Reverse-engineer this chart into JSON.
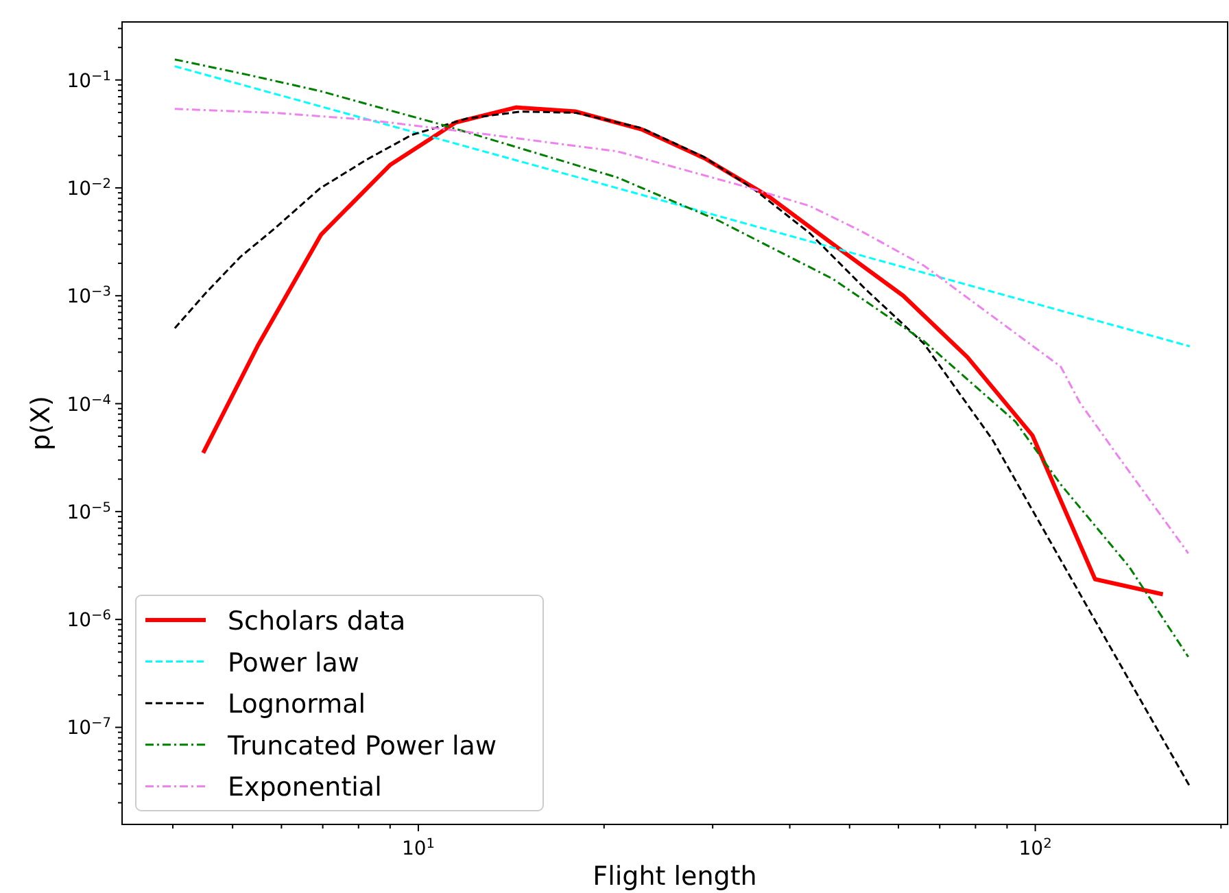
{
  "chart_data": {
    "type": "line",
    "xlabel": "Flight length",
    "ylabel": "p(X)",
    "log": "xy",
    "legend": "bottom left",
    "grid": false,
    "xlim": [
      3.31,
      205
    ],
    "ylim": [
      1.26e-08,
      0.345
    ],
    "xticks": [
      {
        "value": 4,
        "label": null
      },
      {
        "value": 5,
        "label": null
      },
      {
        "value": 6,
        "label": null
      },
      {
        "value": 7,
        "label": null
      },
      {
        "value": 8,
        "label": null
      },
      {
        "value": 9,
        "label": null
      },
      {
        "value": 10,
        "label": "10$^{1}$"
      },
      {
        "value": 20,
        "label": null
      },
      {
        "value": 30,
        "label": null
      },
      {
        "value": 40,
        "label": null
      },
      {
        "value": 50,
        "label": null
      },
      {
        "value": 60,
        "label": null
      },
      {
        "value": 70,
        "label": null
      },
      {
        "value": 80,
        "label": null
      },
      {
        "value": 90,
        "label": null
      },
      {
        "value": 100,
        "label": "10$^{2}$"
      },
      {
        "value": 200,
        "label": null
      }
    ],
    "yticks": [
      {
        "value": 2e-08,
        "label": null
      },
      {
        "value": 3e-08,
        "label": null
      },
      {
        "value": 4e-08,
        "label": null
      },
      {
        "value": 5e-08,
        "label": null
      },
      {
        "value": 6e-08,
        "label": null
      },
      {
        "value": 7e-08,
        "label": null
      },
      {
        "value": 8e-08,
        "label": null
      },
      {
        "value": 9e-08,
        "label": null
      },
      {
        "value": 1e-07,
        "label": "10$^{−7}$"
      },
      {
        "value": 2e-07,
        "label": null
      },
      {
        "value": 3e-07,
        "label": null
      },
      {
        "value": 4e-07,
        "label": null
      },
      {
        "value": 5e-07,
        "label": null
      },
      {
        "value": 6e-07,
        "label": null
      },
      {
        "value": 7e-07,
        "label": null
      },
      {
        "value": 8e-07,
        "label": null
      },
      {
        "value": 9e-07,
        "label": null
      },
      {
        "value": 1e-06,
        "label": "10$^{−6}$"
      },
      {
        "value": 2e-06,
        "label": null
      },
      {
        "value": 3e-06,
        "label": null
      },
      {
        "value": 4e-06,
        "label": null
      },
      {
        "value": 5e-06,
        "label": null
      },
      {
        "value": 6e-06,
        "label": null
      },
      {
        "value": 7e-06,
        "label": null
      },
      {
        "value": 8e-06,
        "label": null
      },
      {
        "value": 9e-06,
        "label": null
      },
      {
        "value": 1e-05,
        "label": "10$^{−5}$"
      },
      {
        "value": 2e-05,
        "label": null
      },
      {
        "value": 3e-05,
        "label": null
      },
      {
        "value": 4e-05,
        "label": null
      },
      {
        "value": 5e-05,
        "label": null
      },
      {
        "value": 6e-05,
        "label": null
      },
      {
        "value": 7e-05,
        "label": null
      },
      {
        "value": 8e-05,
        "label": null
      },
      {
        "value": 9e-05,
        "label": null
      },
      {
        "value": 0.0001,
        "label": "10$^{−4}$"
      },
      {
        "value": 0.0002,
        "label": null
      },
      {
        "value": 0.0003,
        "label": null
      },
      {
        "value": 0.0004,
        "label": null
      },
      {
        "value": 0.0005,
        "label": null
      },
      {
        "value": 0.0006,
        "label": null
      },
      {
        "value": 0.0007,
        "label": null
      },
      {
        "value": 0.0008,
        "label": null
      },
      {
        "value": 0.0009,
        "label": null
      },
      {
        "value": 0.001,
        "label": "10$^{−3}$"
      },
      {
        "value": 0.002,
        "label": null
      },
      {
        "value": 0.003,
        "label": null
      },
      {
        "value": 0.004,
        "label": null
      },
      {
        "value": 0.005,
        "label": null
      },
      {
        "value": 0.006,
        "label": null
      },
      {
        "value": 0.007,
        "label": null
      },
      {
        "value": 0.008,
        "label": null
      },
      {
        "value": 0.009,
        "label": null
      },
      {
        "value": 0.01,
        "label": "10$^{−2}$"
      },
      {
        "value": 0.02,
        "label": null
      },
      {
        "value": 0.03,
        "label": null
      },
      {
        "value": 0.04,
        "label": null
      },
      {
        "value": 0.05,
        "label": null
      },
      {
        "value": 0.06,
        "label": null
      },
      {
        "value": 0.07,
        "label": null
      },
      {
        "value": 0.08,
        "label": null
      },
      {
        "value": 0.09,
        "label": null
      },
      {
        "value": 0.1,
        "label": "10$^{−1}$"
      },
      {
        "value": 0.2,
        "label": null
      },
      {
        "value": 0.3,
        "label": null
      }
    ],
    "series": [
      {
        "name": "Scholars data",
        "color": "#ff0000",
        "line_style": "solid",
        "x": [
          4.48,
          5.5,
          6.96,
          9.0,
          11.5,
          14.4,
          18.0,
          23.0,
          29.1,
          37.0,
          47.8,
          61.1,
          77.6,
          98.9,
          125,
          161
        ],
        "values": [
          3.5e-05,
          0.00035,
          0.0037,
          0.0163,
          0.0404,
          0.0557,
          0.051,
          0.0349,
          0.0188,
          0.0083,
          0.0028,
          0.001,
          0.00027,
          5.1e-05,
          2.36e-06,
          1.71e-06
        ]
      },
      {
        "name": "Power law",
        "color": "#00ffff",
        "line_style": "dashed",
        "x": [
          4.03,
          26.8,
          178
        ],
        "values": [
          0.134,
          0.00678,
          0.00034
        ]
      },
      {
        "name": "Lognormal",
        "color": "#000000",
        "line_style": "dashed",
        "x": [
          4.03,
          4.53,
          5.15,
          5.85,
          6.93,
          8.25,
          9.76,
          12.0,
          14.7,
          18.0,
          23.0,
          29.0,
          35.1,
          43.1,
          52.9,
          66.0,
          85.1,
          123,
          178
        ],
        "values": [
          0.0005,
          0.00107,
          0.0023,
          0.0042,
          0.0099,
          0.0183,
          0.031,
          0.044,
          0.051,
          0.0496,
          0.0359,
          0.0194,
          0.0096,
          0.0038,
          0.00117,
          0.00036,
          4.7e-05,
          1.15e-06,
          2.84e-08
        ]
      },
      {
        "name": "Truncated Power law",
        "color": "#008000",
        "line_style": "dashdot",
        "x": [
          4.03,
          5.28,
          6.93,
          8.81,
          10.8,
          14.7,
          21.0,
          30.6,
          47.0,
          66.0,
          92.9,
          110,
          142,
          177
        ],
        "values": [
          0.155,
          0.112,
          0.079,
          0.054,
          0.0392,
          0.0231,
          0.0125,
          0.005,
          0.00143,
          0.00038,
          6.8e-05,
          1.78e-05,
          3.07e-06,
          4.5e-07
        ]
      },
      {
        "name": "Exponential",
        "color": "#ee82ee",
        "line_style": "dashdot",
        "x": [
          4.03,
          5.85,
          8.25,
          12.6,
          21.0,
          33.4,
          43.1,
          52.1,
          66.0,
          85.1,
          110,
          118,
          135,
          177
        ],
        "values": [
          0.054,
          0.0496,
          0.0428,
          0.0319,
          0.0218,
          0.0105,
          0.0068,
          0.004,
          0.0019,
          0.00065,
          0.00022,
          0.000103,
          3.5e-05,
          4.1e-06
        ]
      }
    ]
  }
}
